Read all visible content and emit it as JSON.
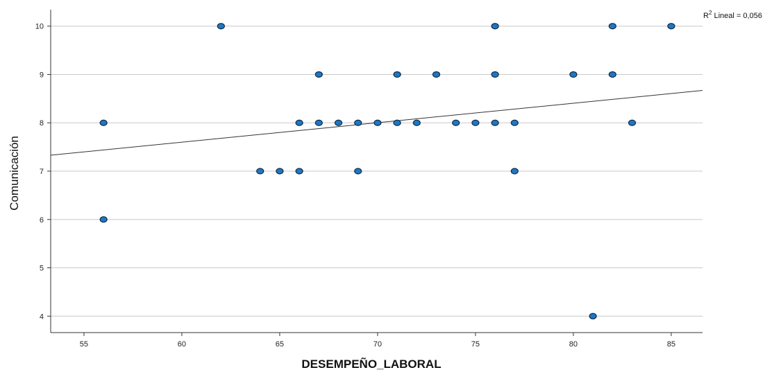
{
  "chart_data": {
    "type": "scatter",
    "xlabel": "DESEMPEÑO_LABORAL",
    "ylabel": "Comunicación",
    "xlim": [
      53.3,
      86.6
    ],
    "ylim": [
      3.66,
      10.34
    ],
    "xticks": [
      55,
      60,
      65,
      70,
      75,
      80,
      85
    ],
    "yticks": [
      4,
      5,
      6,
      7,
      8,
      9,
      10
    ],
    "grid": "horizontal",
    "annotation": {
      "prefix": "R",
      "sup": "2",
      "text": " Lineal = 0,056"
    },
    "fit_line": {
      "x": [
        53.3,
        86.6
      ],
      "y": [
        7.33,
        8.67
      ]
    },
    "point_color": "#1f77c4",
    "points": [
      {
        "x": 56,
        "y": 8
      },
      {
        "x": 56,
        "y": 6
      },
      {
        "x": 62,
        "y": 10
      },
      {
        "x": 64,
        "y": 7
      },
      {
        "x": 65,
        "y": 7
      },
      {
        "x": 66,
        "y": 8
      },
      {
        "x": 66,
        "y": 7
      },
      {
        "x": 67,
        "y": 9
      },
      {
        "x": 67,
        "y": 8
      },
      {
        "x": 68,
        "y": 8
      },
      {
        "x": 69,
        "y": 8
      },
      {
        "x": 69,
        "y": 7
      },
      {
        "x": 70,
        "y": 8
      },
      {
        "x": 71,
        "y": 9
      },
      {
        "x": 71,
        "y": 8
      },
      {
        "x": 72,
        "y": 8
      },
      {
        "x": 73,
        "y": 9
      },
      {
        "x": 74,
        "y": 8
      },
      {
        "x": 75,
        "y": 8
      },
      {
        "x": 76,
        "y": 10
      },
      {
        "x": 76,
        "y": 9
      },
      {
        "x": 76,
        "y": 8
      },
      {
        "x": 77,
        "y": 8
      },
      {
        "x": 77,
        "y": 7
      },
      {
        "x": 80,
        "y": 9
      },
      {
        "x": 81,
        "y": 4
      },
      {
        "x": 82,
        "y": 10
      },
      {
        "x": 82,
        "y": 9
      },
      {
        "x": 83,
        "y": 8
      },
      {
        "x": 85,
        "y": 10
      }
    ]
  }
}
